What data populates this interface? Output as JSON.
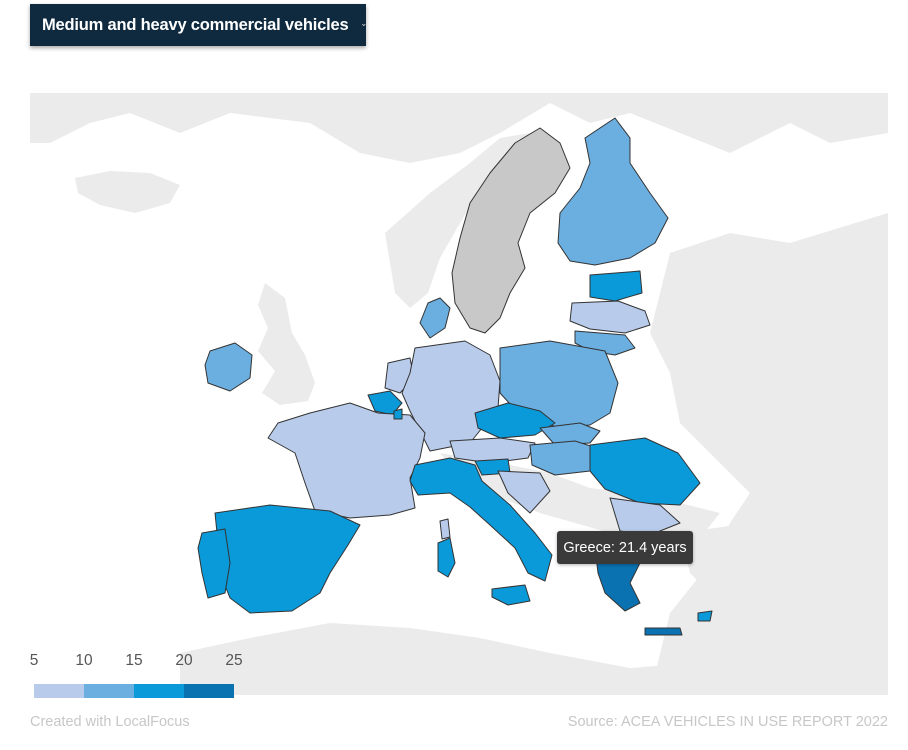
{
  "dropdown": {
    "label": "Medium and heavy commercial vehicles",
    "icon": "chevron-down-icon"
  },
  "tooltip": {
    "text": "Greece: 21.4 years"
  },
  "legend": {
    "ticks": [
      "5",
      "10",
      "15",
      "20",
      "25"
    ],
    "colors": [
      "#b8cbea",
      "#6baee0",
      "#0a9ad9",
      "#0a72b0"
    ]
  },
  "colors": {
    "no_data": "#c8c8c8",
    "background_land": "#ebebeb",
    "header_bg": "#0f2a3f"
  },
  "footer": {
    "credit": "Created with LocalFocus",
    "source": "Source:  ACEA VEHICLES IN USE REPORT 2022"
  }
}
